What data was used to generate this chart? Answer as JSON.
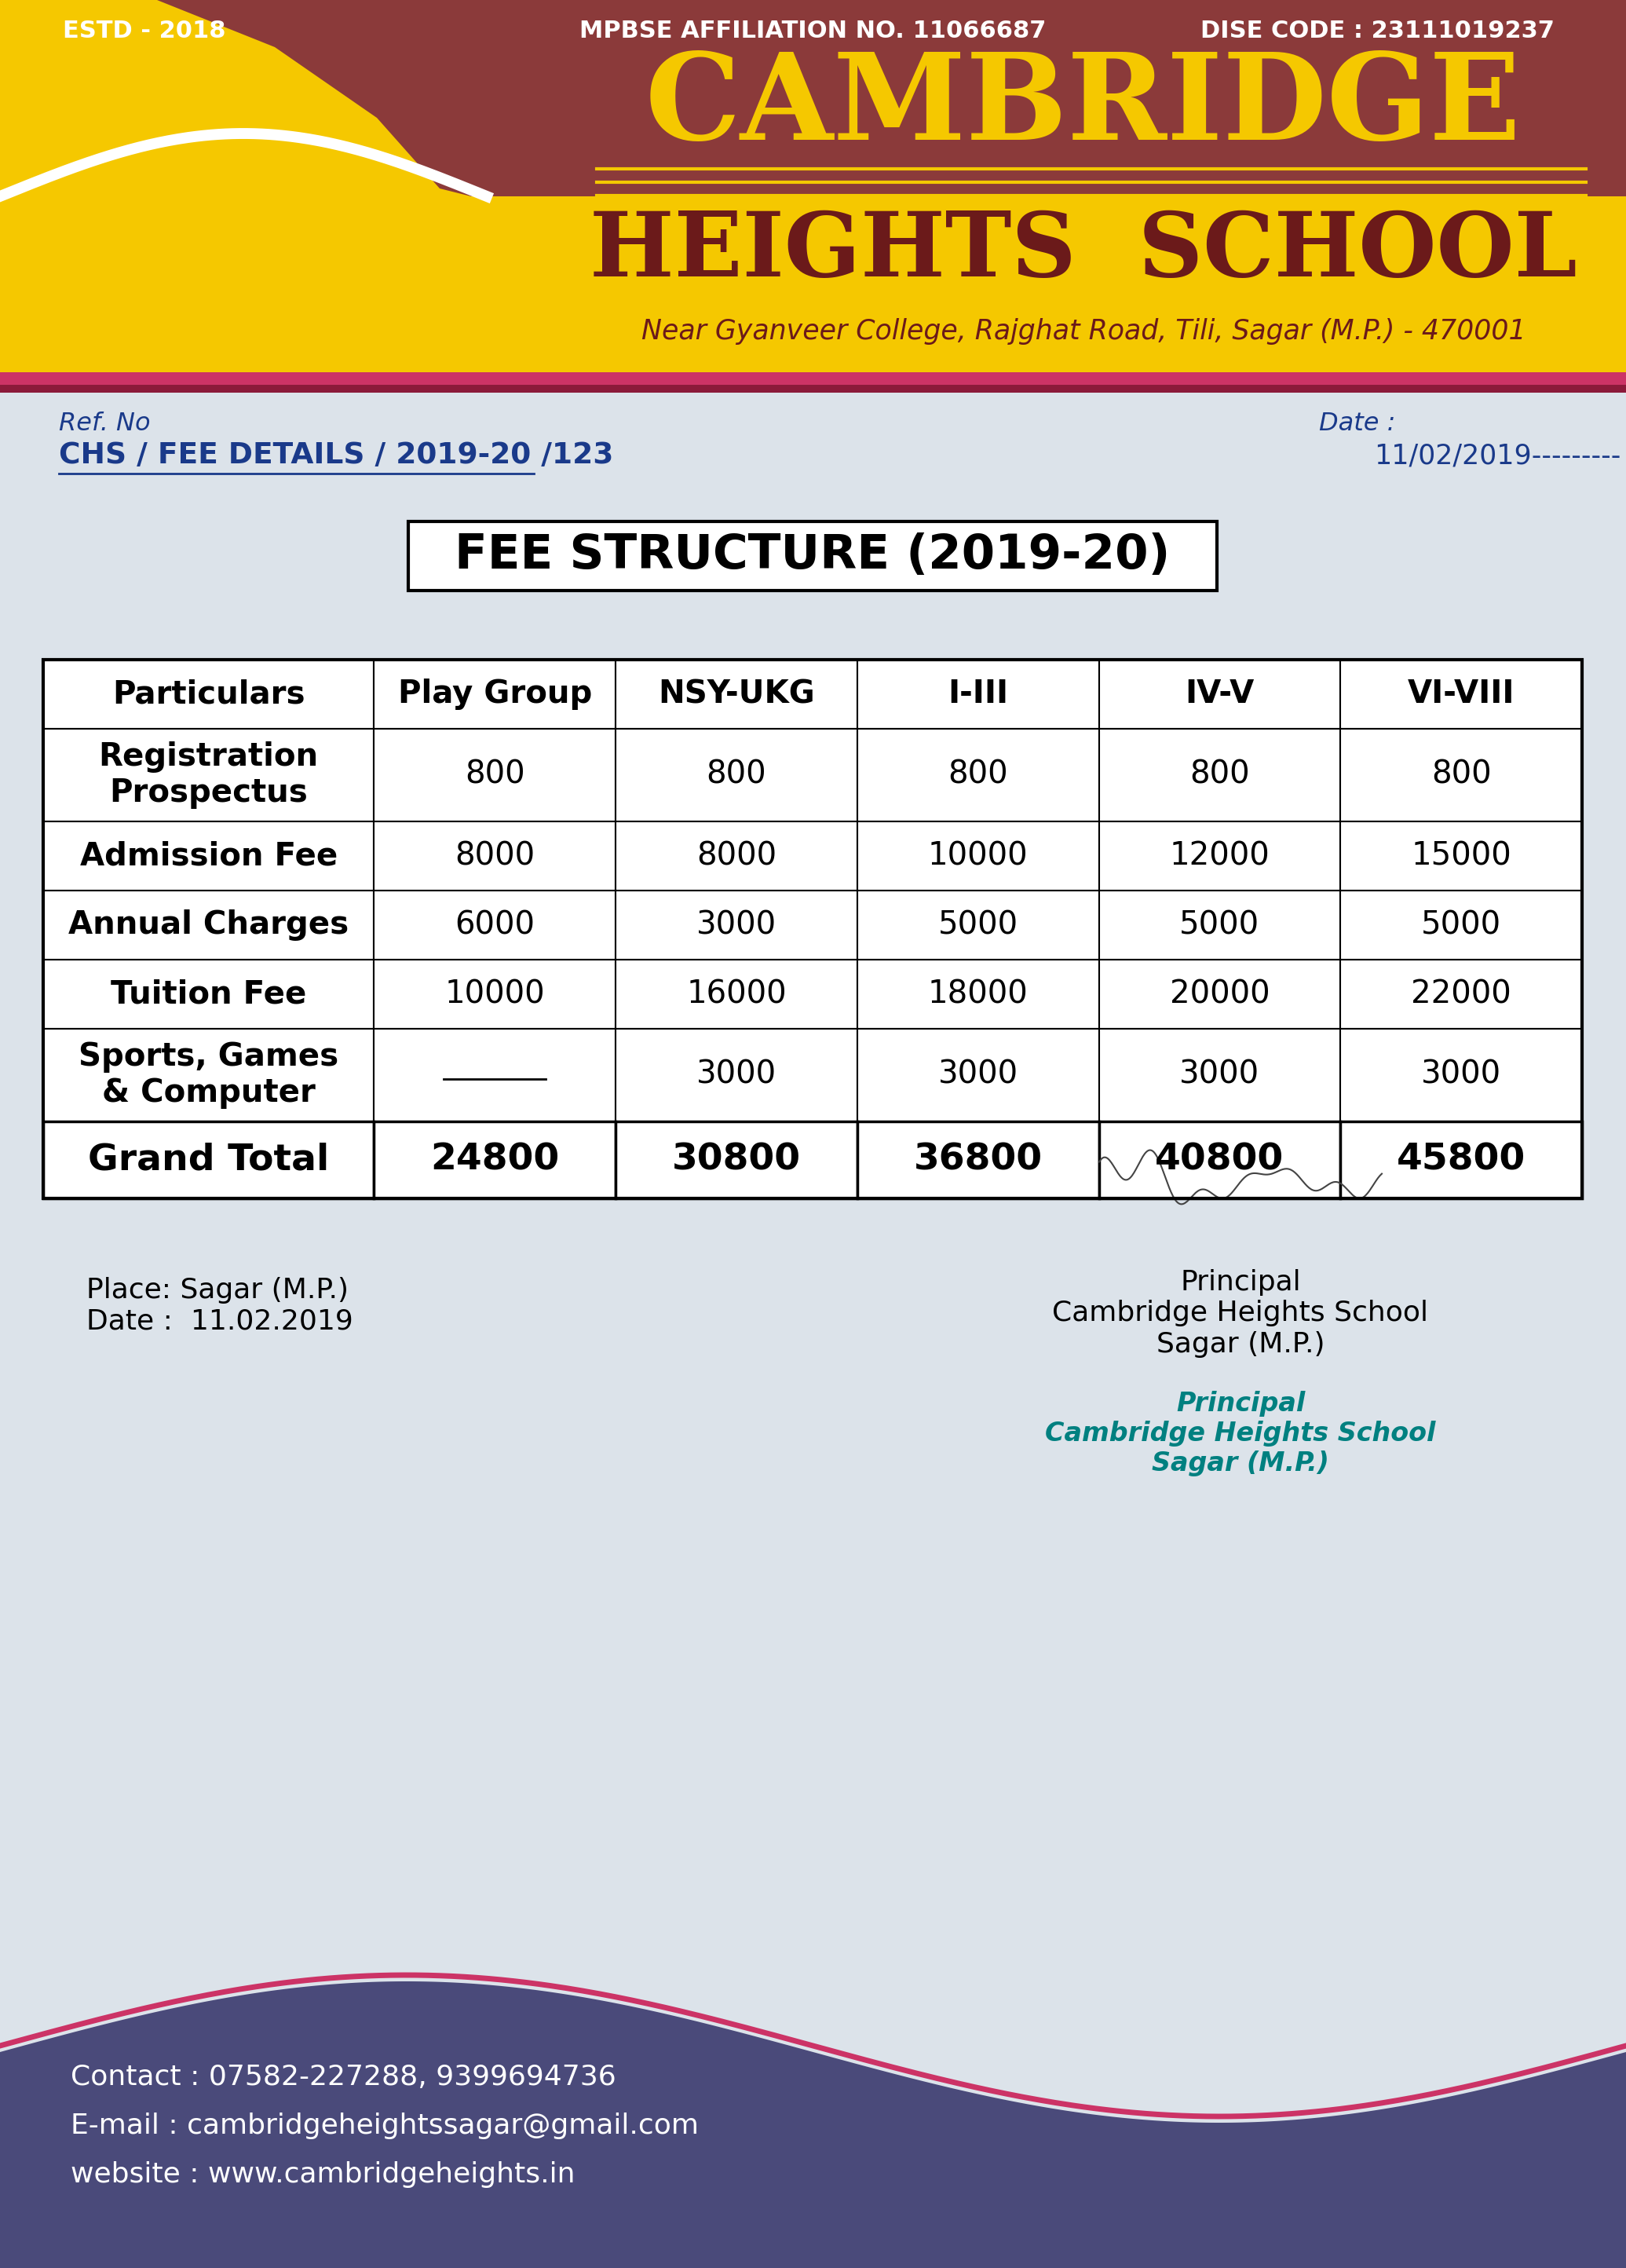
{
  "bg_color": "#dce3ea",
  "header_bg_top": "#8B3A3A",
  "header_bg_yellow": "#F5C800",
  "header_top_text_color": "#FFFFFF",
  "estd": "ESTD - 2018",
  "affiliation": "MPBSE AFFILIATION NO. 11066687",
  "dise": "DISE CODE : 23111019237",
  "cambridge_color": "#F5C800",
  "school_name1": "CAMBRIDGE",
  "school_name2": "HEIGHTS  SCHOOL",
  "address": "Near Gyanveer College, Rajghat Road, Tili, Sagar (M.P.) - 470001",
  "address_color": "#6B1A1A",
  "ref_no": "Ref. No",
  "ref_detail": "CHS / FEE DETAILS / 2019-20 /123",
  "date_label": "Date :",
  "date_value": "11/02/2019---------",
  "ref_color": "#1a3a8a",
  "title": "FEE STRUCTURE (2019-20)",
  "title_color": "#000000",
  "columns": [
    "Particulars",
    "Play Group",
    "NSY-UKG",
    "I-III",
    "IV-V",
    "VI-VIII"
  ],
  "rows": [
    [
      "Registration\nProspectus",
      "800",
      "800",
      "800",
      "800",
      "800"
    ],
    [
      "Admission Fee",
      "8000",
      "8000",
      "10000",
      "12000",
      "15000"
    ],
    [
      "Annual Charges",
      "6000",
      "3000",
      "5000",
      "5000",
      "5000"
    ],
    [
      "Tuition Fee",
      "10000",
      "16000",
      "18000",
      "20000",
      "22000"
    ],
    [
      "Sports, Games\n& Computer",
      "______",
      "3000",
      "3000",
      "3000",
      "3000"
    ],
    [
      "Grand Total",
      "24800",
      "30800",
      "36800",
      "40800",
      "45800"
    ]
  ],
  "grand_total_row": 5,
  "place_date": "Place: Sagar (M.P.)\nDate :  11.02.2019",
  "principal_text": "Principal\nCambridge Heights School\nSagar (M.P.)",
  "principal_stamp": "Principal\nCambridge Heights School\nSagar (M.P.)",
  "principal_color": "#008080",
  "contact_line1": "Contact : 07582-227288, 9399694736",
  "contact_line2": "E-mail : cambridgeheightssagar@gmail.com",
  "contact_line3": "website : www.cambridgeheights.in",
  "footer_bg": "#4a4a7a",
  "footer_text_color": "#FFFFFF",
  "footer_accent": "#cc3366"
}
